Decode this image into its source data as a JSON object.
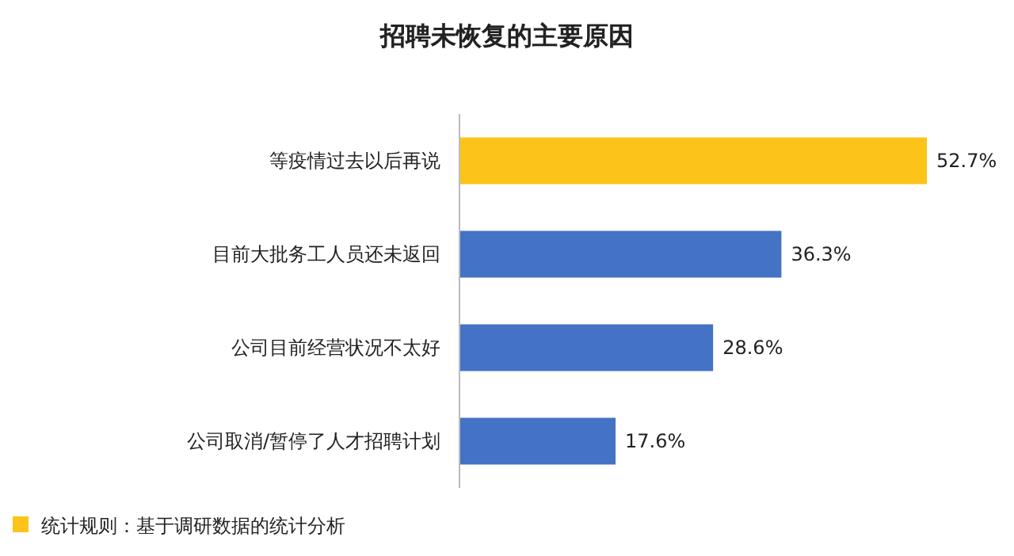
{
  "chart_data": {
    "type": "bar",
    "orientation": "horizontal",
    "title": "招聘未恢复的主要原因",
    "categories": [
      "等疫情过去以后再说",
      "目前大批务工人员还未返回",
      "公司目前经营状况不太好",
      "公司取消/暂停了人才招聘计划"
    ],
    "values": [
      52.7,
      36.3,
      28.6,
      17.6
    ],
    "colors": [
      "#fcc419",
      "#4472c4",
      "#4472c4",
      "#4472c4"
    ],
    "value_labels": [
      "52.7%",
      "36.3%",
      "28.6%",
      "17.6%"
    ],
    "annotations": [
      "统计规则：基于调研数据的统计分析"
    ]
  }
}
